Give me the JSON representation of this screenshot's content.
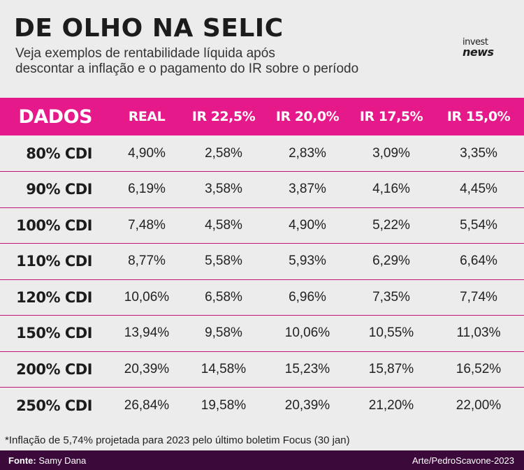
{
  "header": {
    "title": "DE OLHO NA SELIC",
    "subtitle_line1": "Veja exemplos de rentabilidade líquida após",
    "subtitle_line2": "descontar a inflação e o pagamento do IR sobre o período",
    "logo_line1": "invest",
    "logo_line2": "news"
  },
  "table": {
    "columns": [
      "DADOS",
      "REAL",
      "IR 22,5%",
      "IR 20,0%",
      "IR 17,5%",
      "IR 15,0%"
    ],
    "rows": [
      {
        "label": "80% CDI",
        "values": [
          "4,90%",
          "2,58%",
          "2,83%",
          "3,09%",
          "3,35%"
        ]
      },
      {
        "label": "90% CDI",
        "values": [
          "6,19%",
          "3,58%",
          "3,87%",
          "4,16%",
          "4,45%"
        ]
      },
      {
        "label": "100% CDI",
        "values": [
          "7,48%",
          "4,58%",
          "4,90%",
          "5,22%",
          "5,54%"
        ]
      },
      {
        "label": "110% CDI",
        "values": [
          "8,77%",
          "5,58%",
          "5,93%",
          "6,29%",
          "6,64%"
        ]
      },
      {
        "label": "120% CDI",
        "values": [
          "10,06%",
          "6,58%",
          "6,96%",
          "7,35%",
          "7,74%"
        ]
      },
      {
        "label": "150% CDI",
        "values": [
          "13,94%",
          "9,58%",
          "10,06%",
          "10,55%",
          "11,03%"
        ]
      },
      {
        "label": "200% CDI",
        "values": [
          "20,39%",
          "14,58%",
          "15,23%",
          "15,87%",
          "16,52%"
        ]
      },
      {
        "label": "250% CDI",
        "values": [
          "26,84%",
          "19,58%",
          "20,39%",
          "21,20%",
          "22,00%"
        ]
      }
    ]
  },
  "footnote": "*Inflação de 5,74% projetada para 2023 pelo último boletim Focus (30 jan)",
  "footer": {
    "source_label": "Fonte:",
    "source_value": "Samy Dana",
    "credit": "Arte/PedroScavone-2023"
  },
  "colors": {
    "header_bg": "#e5198a",
    "footer_bg": "#3b0a3a",
    "page_bg": "#ececec"
  }
}
